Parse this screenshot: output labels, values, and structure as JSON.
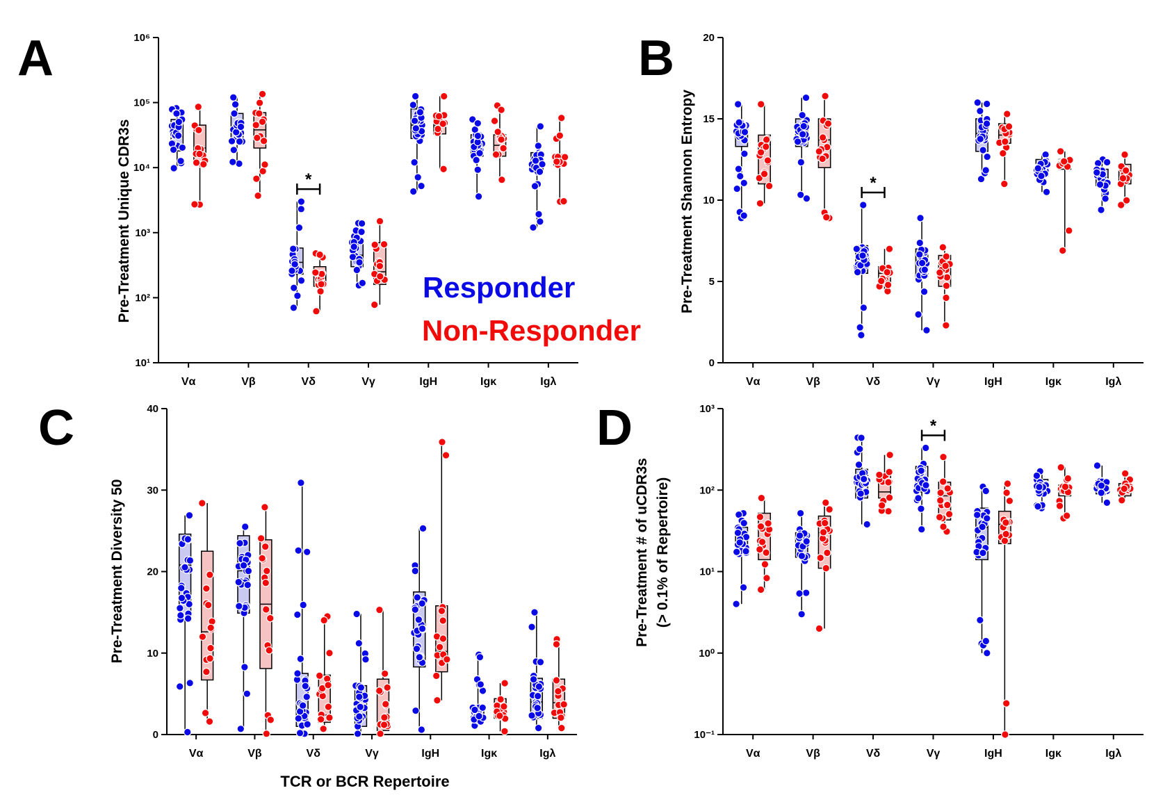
{
  "groups": {
    "responder": {
      "name": "Responder",
      "color": "#0a0ae6",
      "box_fill": "#c9c9f2"
    },
    "non_responder": {
      "name": "Non-Responder",
      "color": "#f00a0a",
      "box_fill": "#f6c3c3"
    }
  },
  "shared_xlabel": "TCR or BCR Repertoire",
  "chart_data": [
    {
      "panel": "A",
      "type": "box",
      "ylabel": "Pre-Treatment Unique CDR3s",
      "yscale": "log",
      "ylim": [
        10,
        1000000
      ],
      "yticks": [
        10,
        100,
        1000,
        10000,
        100000,
        1000000
      ],
      "categories": [
        "Vα",
        "Vβ",
        "Vδ",
        "Vγ",
        "IgH",
        "Igκ",
        "Igλ"
      ],
      "significance": [
        {
          "category": "Vδ",
          "label": "*"
        }
      ],
      "series": [
        {
          "name": "Responder",
          "boxes": [
            {
              "min": 9800,
              "q1": 18000,
              "median": 30000,
              "q3": 55000,
              "max": 82000
            },
            {
              "min": 11500,
              "q1": 25000,
              "median": 40000,
              "q3": 68000,
              "max": 120000
            },
            {
              "min": 70,
              "q1": 230,
              "median": 350,
              "q3": 580,
              "max": 3000
            },
            {
              "min": 155,
              "q1": 300,
              "median": 450,
              "q3": 780,
              "max": 1400
            },
            {
              "min": 4300,
              "q1": 28000,
              "median": 45000,
              "q3": 80000,
              "max": 125000
            },
            {
              "min": 3600,
              "q1": 15000,
              "median": 23000,
              "q3": 32000,
              "max": 55000
            },
            {
              "min": 1200,
              "q1": 8500,
              "median": 13000,
              "q3": 17000,
              "max": 43000
            }
          ]
        },
        {
          "name": "Non-Responder",
          "boxes": [
            {
              "min": 2700,
              "q1": 11000,
              "median": 20000,
              "q3": 45000,
              "max": 86000
            },
            {
              "min": 3700,
              "q1": 20000,
              "median": 38000,
              "q3": 70000,
              "max": 135000
            },
            {
              "min": 62,
              "q1": 150,
              "median": 200,
              "q3": 300,
              "max": 480
            },
            {
              "min": 78,
              "q1": 160,
              "median": 250,
              "q3": 700,
              "max": 1500
            },
            {
              "min": 9500,
              "q1": 33000,
              "median": 45000,
              "q3": 65000,
              "max": 125000
            },
            {
              "min": 6500,
              "q1": 15000,
              "median": 22000,
              "q3": 32000,
              "max": 90000
            },
            {
              "min": 3000,
              "q1": 11000,
              "median": 13000,
              "q3": 15000,
              "max": 58000
            }
          ]
        }
      ]
    },
    {
      "panel": "B",
      "type": "box",
      "ylabel": "Pre-Treatment Shannon Entropy",
      "yscale": "linear",
      "ylim": [
        0,
        20
      ],
      "yticks": [
        0,
        5,
        10,
        15,
        20
      ],
      "categories": [
        "Vα",
        "Vβ",
        "Vδ",
        "Vγ",
        "IgH",
        "Igκ",
        "Igλ"
      ],
      "significance": [
        {
          "category": "Vδ",
          "label": "*"
        }
      ],
      "series": [
        {
          "name": "Responder",
          "boxes": [
            {
              "min": 8.9,
              "q1": 13.3,
              "median": 14.0,
              "q3": 14.8,
              "max": 15.9
            },
            {
              "min": 10.1,
              "q1": 13.3,
              "median": 14.1,
              "q3": 15.0,
              "max": 16.3
            },
            {
              "min": 1.7,
              "q1": 5.5,
              "median": 6.2,
              "q3": 7.2,
              "max": 9.7
            },
            {
              "min": 2.0,
              "q1": 5.3,
              "median": 6.3,
              "q3": 7.0,
              "max": 8.9
            },
            {
              "min": 11.3,
              "q1": 13.0,
              "median": 14.1,
              "q3": 15.0,
              "max": 16.0
            },
            {
              "min": 10.5,
              "q1": 11.5,
              "median": 11.9,
              "q3": 12.5,
              "max": 12.8
            },
            {
              "min": 9.4,
              "q1": 10.9,
              "median": 11.4,
              "q3": 11.9,
              "max": 12.5
            }
          ]
        },
        {
          "name": "Non-Responder",
          "boxes": [
            {
              "min": 9.8,
              "q1": 11.0,
              "median": 13.4,
              "q3": 14.0,
              "max": 15.9
            },
            {
              "min": 8.9,
              "q1": 12.0,
              "median": 13.7,
              "q3": 15.0,
              "max": 16.4
            },
            {
              "min": 4.4,
              "q1": 5.0,
              "median": 5.5,
              "q3": 5.9,
              "max": 7.0
            },
            {
              "min": 2.3,
              "q1": 4.7,
              "median": 5.8,
              "q3": 6.6,
              "max": 7.1
            },
            {
              "min": 11.0,
              "q1": 13.5,
              "median": 14.0,
              "q3": 14.7,
              "max": 15.3
            },
            {
              "min": 6.9,
              "q1": 11.9,
              "median": 12.1,
              "q3": 12.5,
              "max": 13.0
            },
            {
              "min": 9.7,
              "q1": 11.0,
              "median": 11.4,
              "q3": 12.2,
              "max": 12.8
            }
          ]
        }
      ]
    },
    {
      "panel": "C",
      "type": "box",
      "ylabel": "Pre-Treatment Diversity 50",
      "yscale": "linear",
      "ylim": [
        0,
        40
      ],
      "yticks": [
        0,
        10,
        20,
        30,
        40
      ],
      "categories": [
        "Vα",
        "Vβ",
        "Vδ",
        "Vγ",
        "IgH",
        "Igκ",
        "Igλ"
      ],
      "significance": [],
      "series": [
        {
          "name": "Responder",
          "boxes": [
            {
              "min": 0.3,
              "q1": 14.0,
              "median": 20.8,
              "q3": 24.6,
              "max": 26.9
            },
            {
              "min": 0.7,
              "q1": 14.9,
              "median": 20.1,
              "q3": 24.4,
              "max": 25.5
            },
            {
              "min": 0.1,
              "q1": 1.0,
              "median": 2.6,
              "q3": 7.5,
              "max": 30.9
            },
            {
              "min": 0.1,
              "q1": 1.0,
              "median": 2.1,
              "q3": 6.0,
              "max": 14.8
            },
            {
              "min": 0.6,
              "q1": 8.3,
              "median": 13.0,
              "q3": 17.5,
              "max": 25.3
            },
            {
              "min": 1.1,
              "q1": 1.5,
              "median": 2.2,
              "q3": 3.4,
              "max": 9.8
            },
            {
              "min": 0.8,
              "q1": 2.0,
              "median": 4.0,
              "q3": 6.9,
              "max": 15.0
            }
          ]
        },
        {
          "name": "Non-Responder",
          "boxes": [
            {
              "min": 1.6,
              "q1": 6.7,
              "median": 12.6,
              "q3": 22.5,
              "max": 28.4
            },
            {
              "min": 0.1,
              "q1": 8.1,
              "median": 16.0,
              "q3": 23.9,
              "max": 27.9
            },
            {
              "min": 0.7,
              "q1": 1.5,
              "median": 2.4,
              "q3": 7.3,
              "max": 14.5
            },
            {
              "min": 0.1,
              "q1": 0.5,
              "median": 1.2,
              "q3": 6.8,
              "max": 15.3
            },
            {
              "min": 4.2,
              "q1": 7.7,
              "median": 10.2,
              "q3": 15.8,
              "max": 35.9
            },
            {
              "min": 0.4,
              "q1": 2.0,
              "median": 3.1,
              "q3": 4.4,
              "max": 6.3
            },
            {
              "min": 0.8,
              "q1": 2.0,
              "median": 3.9,
              "q3": 6.8,
              "max": 11.7
            }
          ]
        }
      ]
    },
    {
      "panel": "D",
      "type": "box",
      "ylabel": "Pre-Treatment # of uCDR3s",
      "ylabel2": "(> 0.1% of Repertoire)",
      "yscale": "log",
      "ylim": [
        0.1,
        1000
      ],
      "yticks": [
        0.1,
        1,
        10,
        100,
        1000
      ],
      "categories": [
        "Vα",
        "Vβ",
        "Vδ",
        "Vγ",
        "IgH",
        "Igκ",
        "Igλ"
      ],
      "significance": [
        {
          "category": "Vγ",
          "label": "*"
        }
      ],
      "series": [
        {
          "name": "Responder",
          "boxes": [
            {
              "min": 4,
              "q1": 16,
              "median": 25,
              "q3": 35,
              "max": 52
            },
            {
              "min": 3,
              "q1": 15,
              "median": 22,
              "q3": 30,
              "max": 52
            },
            {
              "min": 38,
              "q1": 80,
              "median": 120,
              "q3": 180,
              "max": 440
            },
            {
              "min": 33,
              "q1": 95,
              "median": 140,
              "q3": 195,
              "max": 330
            },
            {
              "min": 1,
              "q1": 14,
              "median": 35,
              "q3": 60,
              "max": 110
            },
            {
              "min": 60,
              "q1": 90,
              "median": 110,
              "q3": 135,
              "max": 170
            },
            {
              "min": 70,
              "q1": 90,
              "median": 100,
              "q3": 130,
              "max": 200
            }
          ]
        },
        {
          "name": "Non-Responder",
          "boxes": [
            {
              "min": 6,
              "q1": 14,
              "median": 35,
              "q3": 52,
              "max": 80
            },
            {
              "min": 2,
              "q1": 11,
              "median": 30,
              "q3": 48,
              "max": 70
            },
            {
              "min": 55,
              "q1": 80,
              "median": 95,
              "q3": 155,
              "max": 270
            },
            {
              "min": 31,
              "q1": 43,
              "median": 85,
              "q3": 125,
              "max": 255
            },
            {
              "min": 0.1,
              "q1": 22,
              "median": 38,
              "q3": 55,
              "max": 120
            },
            {
              "min": 45,
              "q1": 85,
              "median": 100,
              "q3": 115,
              "max": 190
            },
            {
              "min": 75,
              "q1": 85,
              "median": 100,
              "q3": 120,
              "max": 160
            }
          ]
        }
      ]
    }
  ]
}
